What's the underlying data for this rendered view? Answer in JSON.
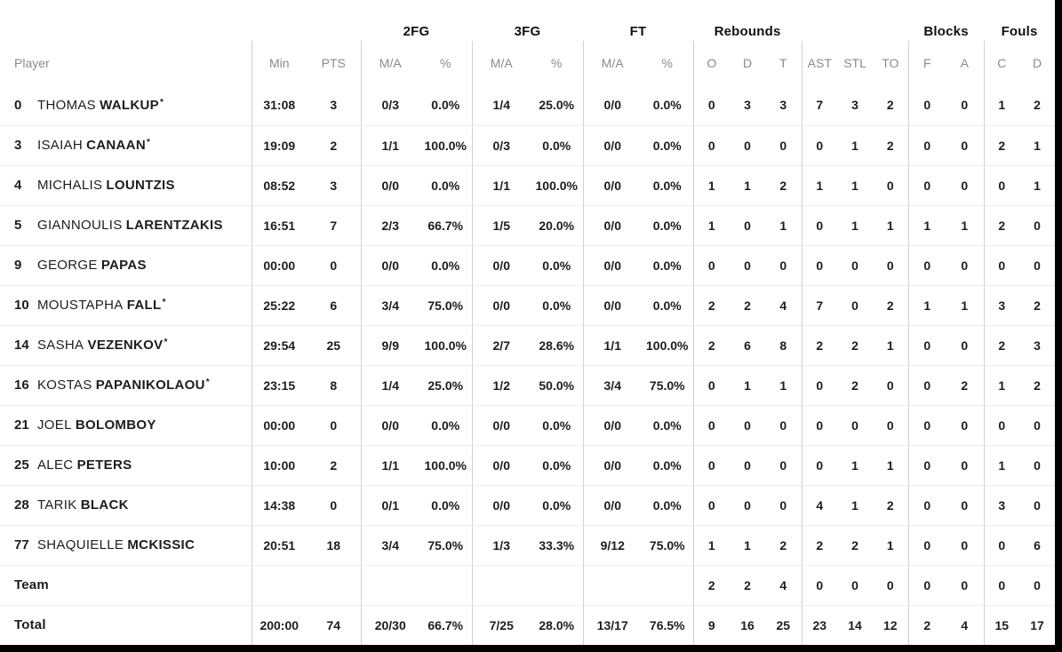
{
  "colors": {
    "frame": "#000000",
    "card_bg": "#ffffff",
    "group_divider": "#cfcfcf",
    "row_divider": "#ececec",
    "header_text": "#8a8a8a",
    "data_text": "#1d1d1d"
  },
  "groups": {
    "fg2": "2FG",
    "fg3": "3FG",
    "ft": "FT",
    "rebounds": "Rebounds",
    "blocks": "Blocks",
    "fouls": "Fouls"
  },
  "columns": {
    "player": "Player",
    "min": "Min",
    "pts": "PTS",
    "ma": "M/A",
    "pct": "%",
    "o": "O",
    "d": "D",
    "t": "T",
    "ast": "AST",
    "stl": "STL",
    "to": "TO",
    "f": "F",
    "a": "A",
    "c": "C",
    "d2": "D"
  },
  "starter_marker": "*",
  "rows": [
    {
      "number": "0",
      "first": "THOMAS",
      "last": "WALKUP",
      "starter": true,
      "min": "31:08",
      "pts": "3",
      "fg2_ma": "0/3",
      "fg2_pct": "0.0%",
      "fg3_ma": "1/4",
      "fg3_pct": "25.0%",
      "ft_ma": "0/0",
      "ft_pct": "0.0%",
      "o": "0",
      "d": "3",
      "t": "3",
      "ast": "7",
      "stl": "3",
      "to": "2",
      "f": "0",
      "a": "0",
      "c": "1",
      "d2": "2"
    },
    {
      "number": "3",
      "first": "ISAIAH",
      "last": "CANAAN",
      "starter": true,
      "min": "19:09",
      "pts": "2",
      "fg2_ma": "1/1",
      "fg2_pct": "100.0%",
      "fg3_ma": "0/3",
      "fg3_pct": "0.0%",
      "ft_ma": "0/0",
      "ft_pct": "0.0%",
      "o": "0",
      "d": "0",
      "t": "0",
      "ast": "0",
      "stl": "1",
      "to": "2",
      "f": "0",
      "a": "0",
      "c": "2",
      "d2": "1"
    },
    {
      "number": "4",
      "first": "MICHALIS",
      "last": "LOUNTZIS",
      "starter": false,
      "min": "08:52",
      "pts": "3",
      "fg2_ma": "0/0",
      "fg2_pct": "0.0%",
      "fg3_ma": "1/1",
      "fg3_pct": "100.0%",
      "ft_ma": "0/0",
      "ft_pct": "0.0%",
      "o": "1",
      "d": "1",
      "t": "2",
      "ast": "1",
      "stl": "1",
      "to": "0",
      "f": "0",
      "a": "0",
      "c": "0",
      "d2": "1"
    },
    {
      "number": "5",
      "first": "GIANNOULIS",
      "last": "LARENTZAKIS",
      "starter": false,
      "min": "16:51",
      "pts": "7",
      "fg2_ma": "2/3",
      "fg2_pct": "66.7%",
      "fg3_ma": "1/5",
      "fg3_pct": "20.0%",
      "ft_ma": "0/0",
      "ft_pct": "0.0%",
      "o": "1",
      "d": "0",
      "t": "1",
      "ast": "0",
      "stl": "1",
      "to": "1",
      "f": "1",
      "a": "1",
      "c": "2",
      "d2": "0"
    },
    {
      "number": "9",
      "first": "GEORGE",
      "last": "PAPAS",
      "starter": false,
      "min": "00:00",
      "pts": "0",
      "fg2_ma": "0/0",
      "fg2_pct": "0.0%",
      "fg3_ma": "0/0",
      "fg3_pct": "0.0%",
      "ft_ma": "0/0",
      "ft_pct": "0.0%",
      "o": "0",
      "d": "0",
      "t": "0",
      "ast": "0",
      "stl": "0",
      "to": "0",
      "f": "0",
      "a": "0",
      "c": "0",
      "d2": "0"
    },
    {
      "number": "10",
      "first": "MOUSTAPHA",
      "last": "FALL",
      "starter": true,
      "min": "25:22",
      "pts": "6",
      "fg2_ma": "3/4",
      "fg2_pct": "75.0%",
      "fg3_ma": "0/0",
      "fg3_pct": "0.0%",
      "ft_ma": "0/0",
      "ft_pct": "0.0%",
      "o": "2",
      "d": "2",
      "t": "4",
      "ast": "7",
      "stl": "0",
      "to": "2",
      "f": "1",
      "a": "1",
      "c": "3",
      "d2": "2"
    },
    {
      "number": "14",
      "first": "SASHA",
      "last": "VEZENKOV",
      "starter": true,
      "min": "29:54",
      "pts": "25",
      "fg2_ma": "9/9",
      "fg2_pct": "100.0%",
      "fg3_ma": "2/7",
      "fg3_pct": "28.6%",
      "ft_ma": "1/1",
      "ft_pct": "100.0%",
      "o": "2",
      "d": "6",
      "t": "8",
      "ast": "2",
      "stl": "2",
      "to": "1",
      "f": "0",
      "a": "0",
      "c": "2",
      "d2": "3"
    },
    {
      "number": "16",
      "first": "KOSTAS",
      "last": "PAPANIKOLAOU",
      "starter": true,
      "min": "23:15",
      "pts": "8",
      "fg2_ma": "1/4",
      "fg2_pct": "25.0%",
      "fg3_ma": "1/2",
      "fg3_pct": "50.0%",
      "ft_ma": "3/4",
      "ft_pct": "75.0%",
      "o": "0",
      "d": "1",
      "t": "1",
      "ast": "0",
      "stl": "2",
      "to": "0",
      "f": "0",
      "a": "2",
      "c": "1",
      "d2": "2"
    },
    {
      "number": "21",
      "first": "JOEL",
      "last": "BOLOMBOY",
      "starter": false,
      "min": "00:00",
      "pts": "0",
      "fg2_ma": "0/0",
      "fg2_pct": "0.0%",
      "fg3_ma": "0/0",
      "fg3_pct": "0.0%",
      "ft_ma": "0/0",
      "ft_pct": "0.0%",
      "o": "0",
      "d": "0",
      "t": "0",
      "ast": "0",
      "stl": "0",
      "to": "0",
      "f": "0",
      "a": "0",
      "c": "0",
      "d2": "0"
    },
    {
      "number": "25",
      "first": "ALEC",
      "last": "PETERS",
      "starter": false,
      "min": "10:00",
      "pts": "2",
      "fg2_ma": "1/1",
      "fg2_pct": "100.0%",
      "fg3_ma": "0/0",
      "fg3_pct": "0.0%",
      "ft_ma": "0/0",
      "ft_pct": "0.0%",
      "o": "0",
      "d": "0",
      "t": "0",
      "ast": "0",
      "stl": "1",
      "to": "1",
      "f": "0",
      "a": "0",
      "c": "1",
      "d2": "0"
    },
    {
      "number": "28",
      "first": "TARIK",
      "last": "BLACK",
      "starter": false,
      "min": "14:38",
      "pts": "0",
      "fg2_ma": "0/1",
      "fg2_pct": "0.0%",
      "fg3_ma": "0/0",
      "fg3_pct": "0.0%",
      "ft_ma": "0/0",
      "ft_pct": "0.0%",
      "o": "0",
      "d": "0",
      "t": "0",
      "ast": "4",
      "stl": "1",
      "to": "2",
      "f": "0",
      "a": "0",
      "c": "3",
      "d2": "0"
    },
    {
      "number": "77",
      "first": "SHAQUIELLE",
      "last": "MCKISSIC",
      "starter": false,
      "min": "20:51",
      "pts": "18",
      "fg2_ma": "3/4",
      "fg2_pct": "75.0%",
      "fg3_ma": "1/3",
      "fg3_pct": "33.3%",
      "ft_ma": "9/12",
      "ft_pct": "75.0%",
      "o": "1",
      "d": "1",
      "t": "2",
      "ast": "2",
      "stl": "2",
      "to": "1",
      "f": "0",
      "a": "0",
      "c": "0",
      "d2": "6"
    }
  ],
  "team_row": {
    "label": "Team",
    "min": "",
    "pts": "",
    "fg2_ma": "",
    "fg2_pct": "",
    "fg3_ma": "",
    "fg3_pct": "",
    "ft_ma": "",
    "ft_pct": "",
    "o": "2",
    "d": "2",
    "t": "4",
    "ast": "0",
    "stl": "0",
    "to": "0",
    "f": "0",
    "a": "0",
    "c": "0",
    "d2": "0"
  },
  "total_row": {
    "label": "Total",
    "min": "200:00",
    "pts": "74",
    "fg2_ma": "20/30",
    "fg2_pct": "66.7%",
    "fg3_ma": "7/25",
    "fg3_pct": "28.0%",
    "ft_ma": "13/17",
    "ft_pct": "76.5%",
    "o": "9",
    "d": "16",
    "t": "25",
    "ast": "23",
    "stl": "14",
    "to": "12",
    "f": "2",
    "a": "4",
    "c": "15",
    "d2": "17"
  }
}
